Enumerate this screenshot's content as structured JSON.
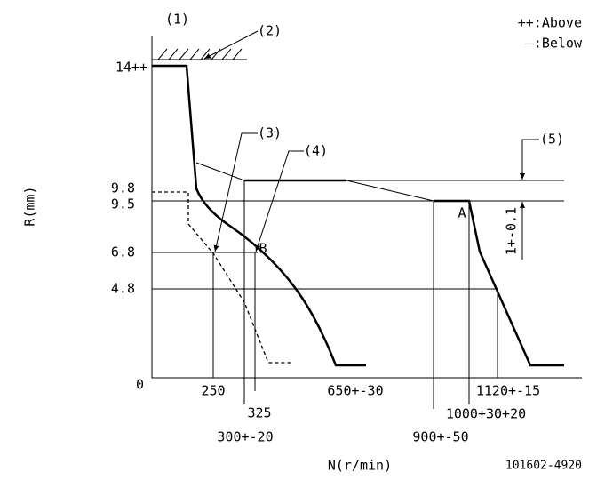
{
  "labels": {
    "ref1": "(1)",
    "ref2": "(2)",
    "ref3": "(3)",
    "ref4": "(4)",
    "ref5": "(5)"
  },
  "legend": {
    "above": "++:Above",
    "below": "—:Below"
  },
  "y_axis": {
    "title": "R(mm)",
    "ticks": [
      "14++",
      "9.8",
      "9.5",
      "6.8",
      "4.8",
      "0"
    ]
  },
  "x_axis": {
    "title": "N(r/min)",
    "ticks": [
      "250",
      "325",
      "650+-30",
      "300+-20",
      "1120+-15",
      "1000+30+20",
      "900+-50"
    ]
  },
  "points": {
    "a": "A",
    "b": "B"
  },
  "tolerance": "1+-0.1",
  "drawing_number": "101602-4920"
}
